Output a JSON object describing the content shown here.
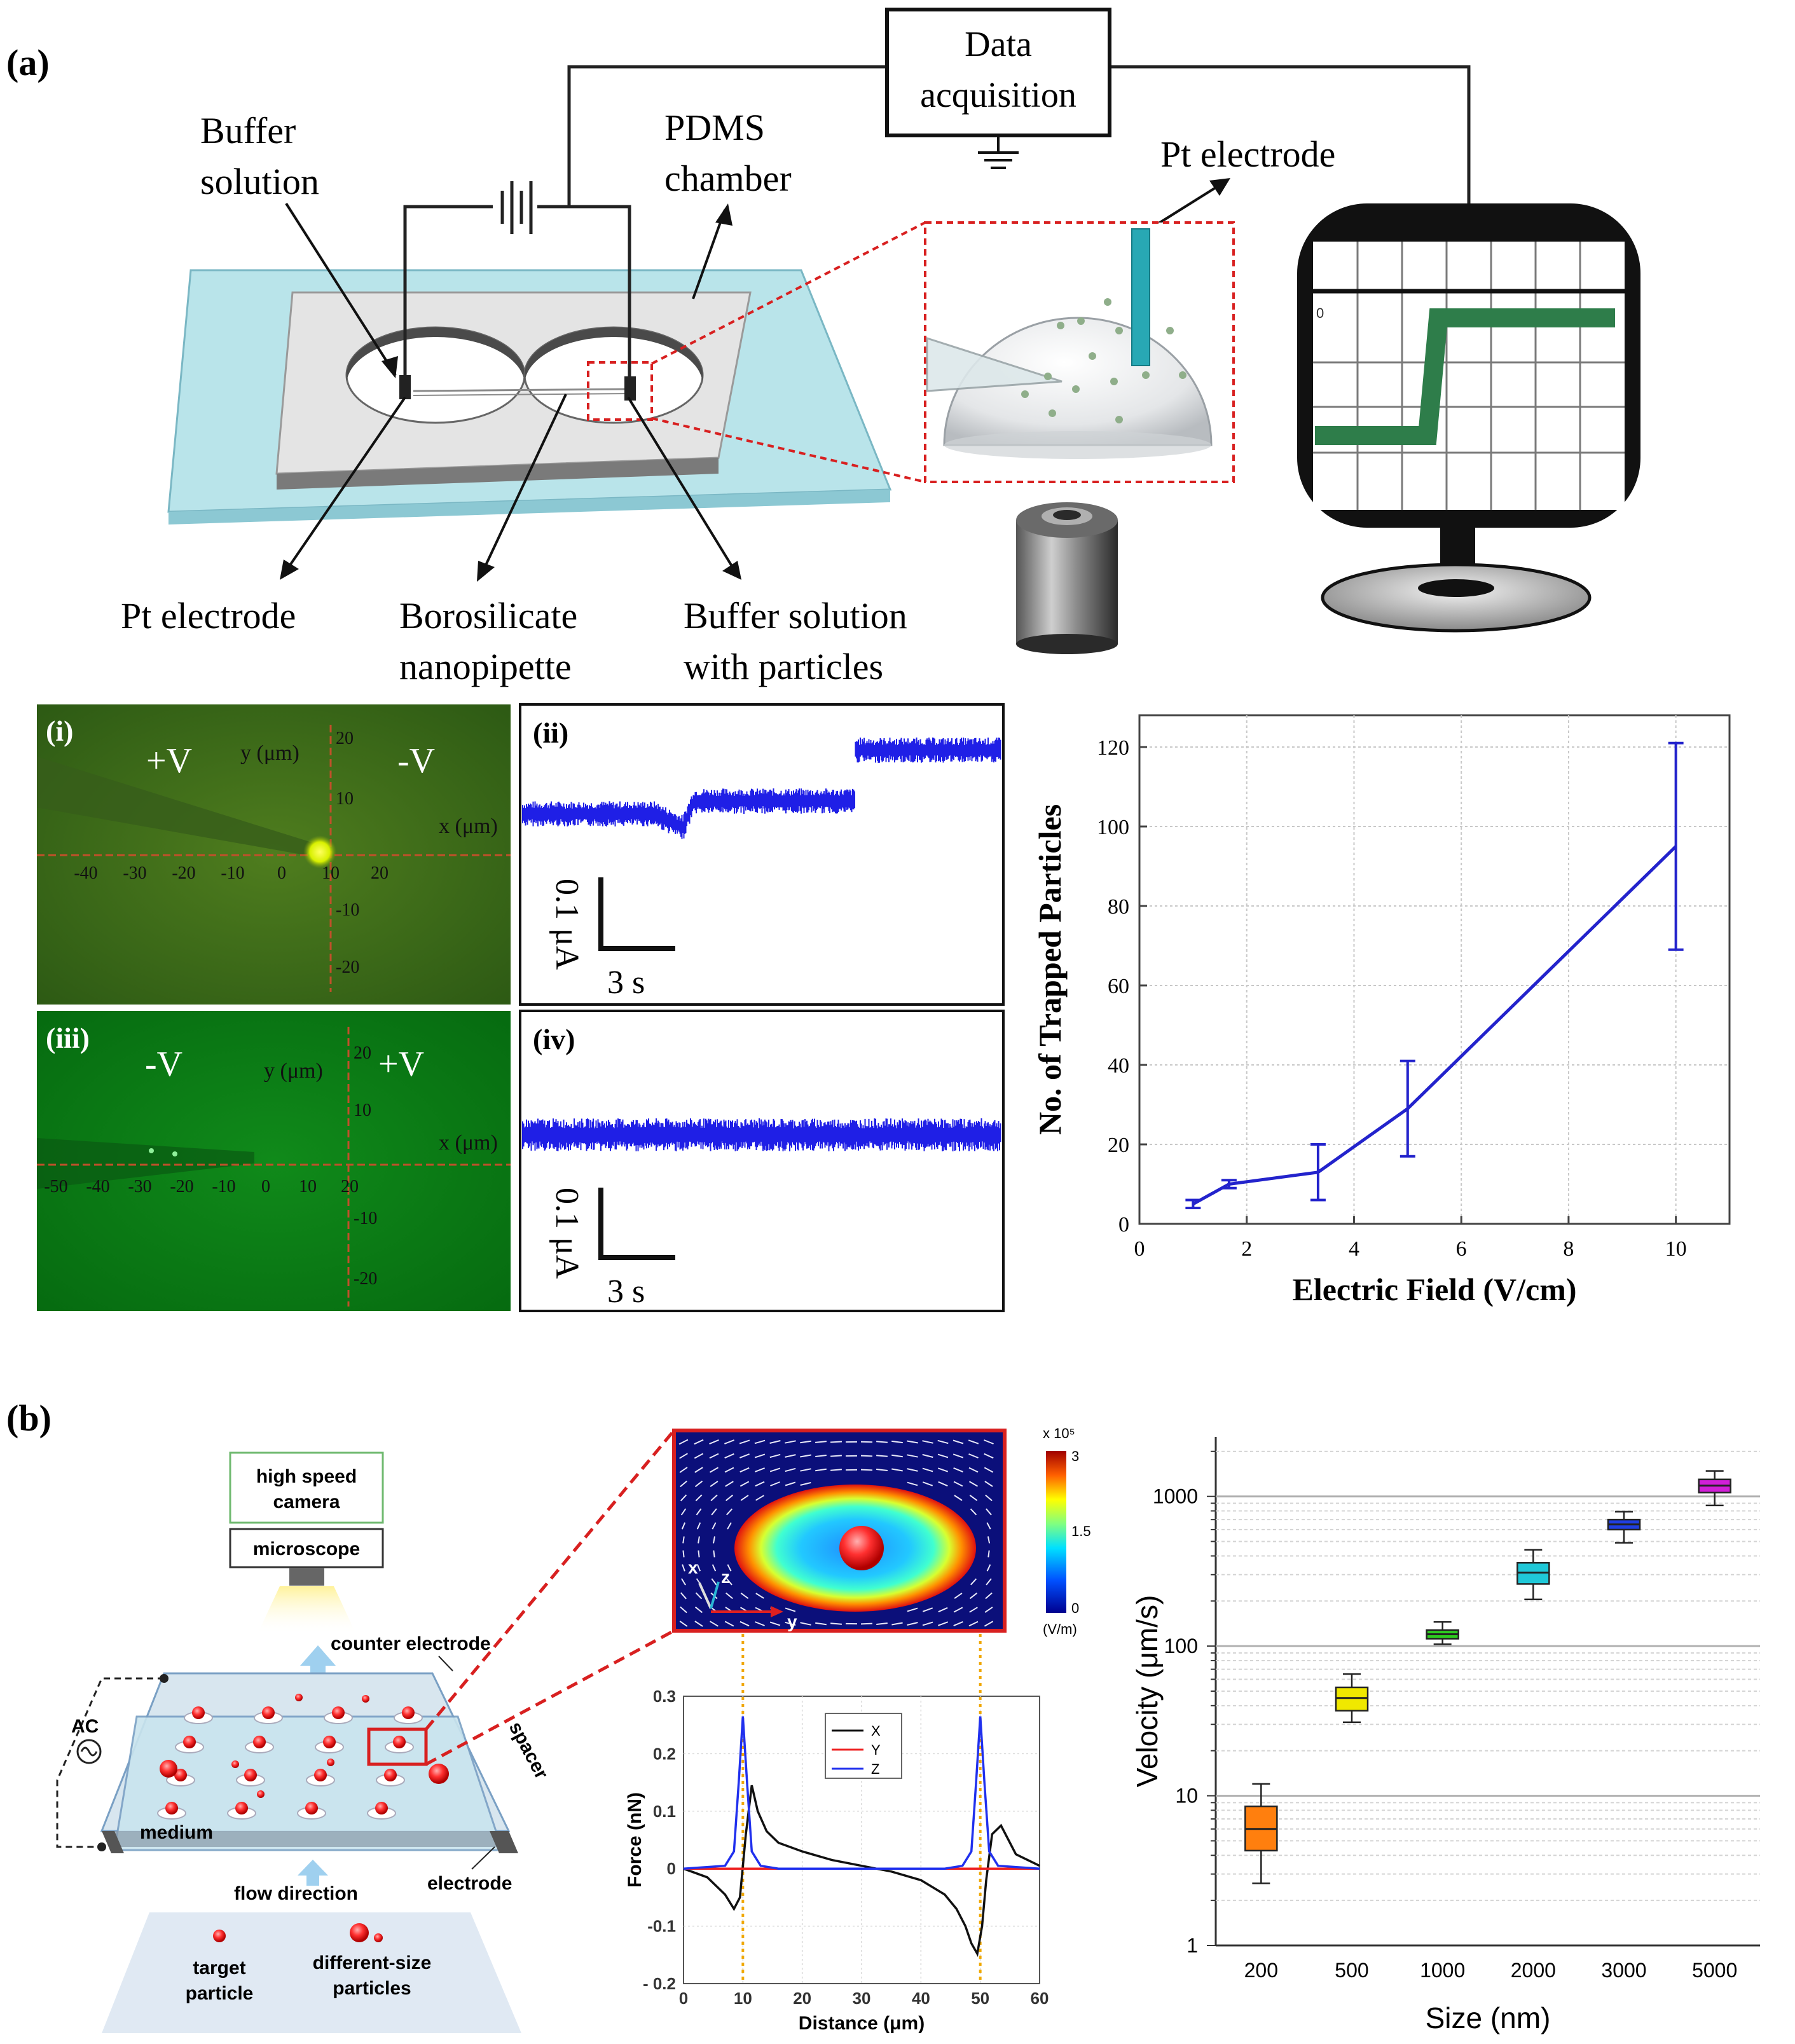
{
  "panel_a": {
    "label": "(a)",
    "data_box": [
      "Data",
      "acquisition"
    ],
    "callouts": {
      "buffer_solution": [
        "Buffer",
        "solution"
      ],
      "pdms_chamber": [
        "PDMS",
        "chamber"
      ],
      "pt_electrode_top": "Pt electrode",
      "pt_electrode_bottom": "Pt electrode",
      "nanopipette": [
        "Borosilicate",
        "nanopipette"
      ],
      "buffer_particles": [
        "Buffer solution",
        "with particles"
      ]
    },
    "monitor_tick": "0",
    "subpanels": {
      "i": {
        "label": "(i)",
        "left_v": "+V",
        "right_v": "-V",
        "y_axis": "y (μm)",
        "x_axis": "x (μm)",
        "x_ticks": [
          "-40",
          "-30",
          "-20",
          "-10",
          "0",
          "10",
          "20"
        ],
        "y_ticks": [
          "20",
          "10",
          "-10",
          "-20"
        ]
      },
      "ii": {
        "label": "(ii)",
        "scale_current": "0.1 μA",
        "scale_time": "3 s"
      },
      "iii": {
        "label": "(iii)",
        "left_v": "-V",
        "right_v": "+V",
        "y_axis": "y (μm)",
        "x_axis": "x (μm)",
        "x_ticks": [
          "-50",
          "-40",
          "-30",
          "-20",
          "-10",
          "0",
          "10",
          "20"
        ],
        "y_ticks": [
          "20",
          "10",
          "-10",
          "-20"
        ]
      },
      "iv": {
        "label": "(iv)",
        "scale_current": "0.1 μA",
        "scale_time": "3 s"
      }
    }
  },
  "panel_b": {
    "label": "(b)",
    "setup": {
      "camera": [
        "high speed",
        "camera"
      ],
      "microscope": "microscope",
      "counter_electrode": "counter electrode",
      "ac": "AC",
      "spacer": "spacer",
      "medium": "medium",
      "electrode": "electrode",
      "flow_direction": "flow direction",
      "legend_target": [
        "target",
        "particle"
      ],
      "legend_diff": [
        "different-size",
        "particles"
      ]
    },
    "field_map": {
      "colorbar_title": "x 10⁵",
      "colorbar_ticks": [
        "3",
        "1.5",
        "0"
      ],
      "colorbar_unit": "(V/m)",
      "axes": [
        "x",
        "z",
        "y"
      ]
    }
  },
  "colors": {
    "trace_blue": "#1f1fe6",
    "chart_blue": "#2323cc",
    "box_colors": [
      "#ff7f0e",
      "#f0e800",
      "#2ecc1f",
      "#1fc8d8",
      "#1f3fe0",
      "#d21fd8"
    ]
  },
  "chart_data": [
    {
      "id": "trapped_particles",
      "type": "line",
      "x": [
        1,
        1.67,
        3.33,
        5,
        10
      ],
      "y": [
        5,
        10,
        13,
        29,
        95
      ],
      "y_err_low": [
        4,
        9,
        6,
        17,
        69
      ],
      "y_err_high": [
        6,
        11,
        20,
        41,
        121
      ],
      "xlim": [
        0,
        11
      ],
      "ylim": [
        0,
        128
      ],
      "x_ticks": [
        "0",
        "2",
        "4",
        "6",
        "8",
        "10"
      ],
      "y_ticks": [
        "0",
        "20",
        "40",
        "60",
        "80",
        "100",
        "120"
      ],
      "xlabel": "Electric Field (V/cm)",
      "ylabel": "No. of Trapped Particles",
      "grid": true
    },
    {
      "id": "force_distance",
      "type": "line",
      "xlim": [
        0,
        60
      ],
      "ylim": [
        -0.2,
        0.3
      ],
      "x_ticks": [
        "0",
        "10",
        "20",
        "30",
        "40",
        "50",
        "60"
      ],
      "y_ticks": [
        "0.3",
        "0.2",
        "0.1",
        "0",
        "-0.1",
        "- 0.2"
      ],
      "xlabel": "Distance (μm)",
      "ylabel": "Force (nN)",
      "legend": [
        "X",
        "Y",
        "Z"
      ],
      "reference_lines_x": [
        10,
        50
      ],
      "series": [
        {
          "name": "X",
          "color": "#111111",
          "x": [
            0,
            4,
            7,
            8.5,
            9.5,
            10.5,
            11.5,
            12.5,
            14,
            16,
            20,
            25,
            30,
            35,
            40,
            44,
            46,
            47.5,
            48.5,
            49.5,
            50.3,
            51,
            52,
            53.5,
            56,
            60
          ],
          "y": [
            0,
            -0.015,
            -0.045,
            -0.07,
            -0.05,
            0.06,
            0.145,
            0.1,
            0.065,
            0.045,
            0.03,
            0.015,
            0.005,
            -0.005,
            -0.02,
            -0.045,
            -0.07,
            -0.1,
            -0.13,
            -0.148,
            -0.1,
            -0.02,
            0.06,
            0.075,
            0.025,
            0.005
          ]
        },
        {
          "name": "Y",
          "color": "#ee2222",
          "x": [
            0,
            60
          ],
          "y": [
            0,
            0
          ]
        },
        {
          "name": "Z",
          "color": "#2030ee",
          "x": [
            0,
            7,
            8.5,
            9.3,
            10,
            10.7,
            11.5,
            13,
            16,
            30,
            44,
            47,
            48.5,
            49.3,
            50,
            50.7,
            51.5,
            53,
            60
          ],
          "y": [
            0,
            0.005,
            0.03,
            0.15,
            0.265,
            0.15,
            0.03,
            0.005,
            0,
            0,
            0,
            0.005,
            0.03,
            0.15,
            0.265,
            0.15,
            0.03,
            0.005,
            0
          ]
        }
      ]
    },
    {
      "id": "velocity_size",
      "type": "box",
      "categories": [
        "200",
        "500",
        "1000",
        "2000",
        "3000",
        "5000"
      ],
      "yscale": "log",
      "ylim": [
        1,
        2500
      ],
      "y_ticks": [
        "1",
        "10",
        "100",
        "1000"
      ],
      "xlabel": "Size (nm)",
      "ylabel": "Velocity (μm/s)",
      "boxes": [
        {
          "min": 2.6,
          "q1": 4.3,
          "median": 6,
          "q3": 8.5,
          "max": 12
        },
        {
          "min": 31,
          "q1": 37,
          "median": 45,
          "q3": 53,
          "max": 65
        },
        {
          "min": 103,
          "q1": 112,
          "median": 120,
          "q3": 128,
          "max": 145
        },
        {
          "min": 205,
          "q1": 260,
          "median": 310,
          "q3": 360,
          "max": 440
        },
        {
          "min": 490,
          "q1": 600,
          "median": 650,
          "q3": 700,
          "max": 790
        },
        {
          "min": 870,
          "q1": 1060,
          "median": 1180,
          "q3": 1300,
          "max": 1480
        }
      ]
    }
  ]
}
